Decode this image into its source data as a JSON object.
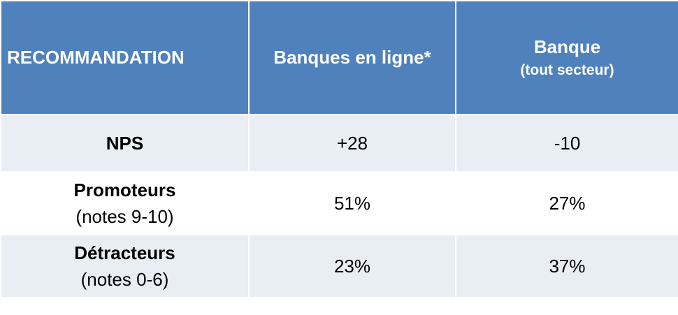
{
  "header": {
    "col1": "RECOMMANDATION",
    "col2": "Banques en ligne*",
    "col3_title": "Banque",
    "col3_sub": "(tout secteur)"
  },
  "rows": [
    {
      "label": "NPS",
      "sub": "",
      "online": "+28",
      "bank": "-10"
    },
    {
      "label": "Promoteurs",
      "sub": "(notes 9-10)",
      "online": "51%",
      "bank": "27%"
    },
    {
      "label": "Détracteurs",
      "sub": "(notes 0-6)",
      "online": "23%",
      "bank": "37%"
    }
  ],
  "colors": {
    "header_bg": "#4f81bd",
    "row_light": "#e9edf4",
    "row_white": "#ffffff"
  }
}
